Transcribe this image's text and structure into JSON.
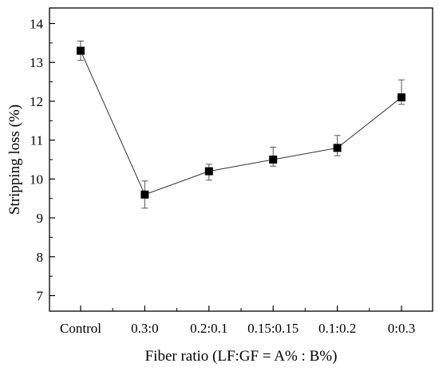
{
  "chart_data": {
    "type": "line",
    "title": "",
    "xlabel": "Fiber ratio (LF:GF = A% : B%)",
    "ylabel": "Stripping loss (%)",
    "categories": [
      "Control",
      "0.3:0",
      "0.2:0.1",
      "0.15:0.15",
      "0.1:0.2",
      "0:0.3"
    ],
    "series": [
      {
        "values": [
          13.3,
          9.6,
          10.2,
          10.5,
          10.8,
          12.1
        ],
        "error_high": [
          13.55,
          9.95,
          10.38,
          10.82,
          11.12,
          12.55
        ],
        "error_low": [
          13.05,
          9.25,
          9.97,
          10.33,
          10.6,
          11.92
        ]
      }
    ],
    "ylim": [
      6.6,
      14.4
    ],
    "yticks": [
      7,
      8,
      9,
      10,
      11,
      12,
      13,
      14
    ],
    "ytick_labels": [
      "7",
      "8",
      "9",
      "10",
      "11",
      "12",
      "13",
      "14"
    ],
    "grid": false,
    "legend": "none",
    "colors": {
      "marker": "#000000",
      "line": "#333333",
      "error_bar": "#555555"
    }
  }
}
